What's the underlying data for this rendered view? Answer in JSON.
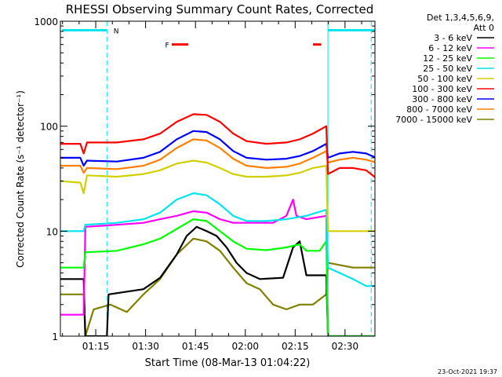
{
  "chart_data": {
    "type": "line",
    "title": "RHESSI Observing Summary Count Rates, Corrected",
    "xlabel": "Start Time (08-Mar-13 01:04:22)",
    "ylabel": "Corrected Count Rate (s⁻¹ detector⁻¹)",
    "y_scale": "log",
    "ylim": [
      1,
      1000
    ],
    "xlim": [
      "01:04:22",
      "02:39:00"
    ],
    "x_ticks": [
      "01:15",
      "01:30",
      "01:45",
      "02:00",
      "02:15",
      "02:30"
    ],
    "y_ticks": [
      "1",
      "10",
      "100",
      "1000"
    ],
    "legend_header": [
      "Det 1,3,4,5,6,9,",
      "Att 0"
    ],
    "legend_position": "right",
    "footer": "23-Oct-2021 19:37",
    "flags": [
      {
        "label": "N",
        "color": "#00e5ee"
      },
      {
        "label": "F",
        "color": "#ff0000"
      }
    ],
    "series": [
      {
        "name": "3 - 6 keV",
        "color": "#000000",
        "points": [
          [
            0,
            3.5
          ],
          [
            7,
            3.5
          ],
          [
            7.5,
            1.0
          ],
          [
            14,
            1.0
          ],
          [
            14.5,
            2.5
          ],
          [
            25,
            2.8
          ],
          [
            30,
            3.6
          ],
          [
            35,
            6
          ],
          [
            38,
            9
          ],
          [
            41,
            11
          ],
          [
            44,
            10
          ],
          [
            47,
            9
          ],
          [
            50,
            7
          ],
          [
            53,
            5
          ],
          [
            56,
            4
          ],
          [
            60,
            3.5
          ],
          [
            67,
            3.6
          ],
          [
            70,
            7
          ],
          [
            72,
            8
          ],
          [
            74,
            3.8
          ],
          [
            80,
            3.8
          ],
          [
            80.5,
            1.0
          ],
          [
            95,
            1.0
          ]
        ]
      },
      {
        "name": "6 - 12 keV",
        "color": "#ff00ff",
        "points": [
          [
            0,
            1.6
          ],
          [
            7,
            1.6
          ],
          [
            7.5,
            11
          ],
          [
            17,
            11.5
          ],
          [
            25,
            12
          ],
          [
            30,
            13
          ],
          [
            35,
            14
          ],
          [
            40,
            15.5
          ],
          [
            44,
            15
          ],
          [
            48,
            13
          ],
          [
            52,
            12
          ],
          [
            56,
            12
          ],
          [
            60,
            12
          ],
          [
            64,
            12
          ],
          [
            68,
            14
          ],
          [
            70,
            20
          ],
          [
            71,
            14
          ],
          [
            74,
            13
          ],
          [
            80,
            14
          ],
          [
            80.5,
            1.0
          ],
          [
            95,
            1.0
          ]
        ]
      },
      {
        "name": "12 - 25 keV",
        "color": "#00ff00",
        "points": [
          [
            0,
            4.5
          ],
          [
            7,
            4.5
          ],
          [
            7.5,
            6.3
          ],
          [
            17,
            6.5
          ],
          [
            25,
            7.5
          ],
          [
            30,
            8.5
          ],
          [
            35,
            10.5
          ],
          [
            40,
            13
          ],
          [
            44,
            12.5
          ],
          [
            48,
            10
          ],
          [
            52,
            8
          ],
          [
            56,
            6.8
          ],
          [
            62,
            6.6
          ],
          [
            68,
            7.0
          ],
          [
            72,
            7.5
          ],
          [
            74,
            6.5
          ],
          [
            78,
            6.5
          ],
          [
            80,
            8.0
          ],
          [
            80.5,
            1.0
          ],
          [
            95,
            1.0
          ]
        ]
      },
      {
        "name": "25 - 50 keV",
        "color": "#00e5ee",
        "points": [
          [
            0,
            10
          ],
          [
            7,
            10
          ],
          [
            7.5,
            11.5
          ],
          [
            17,
            12
          ],
          [
            25,
            13
          ],
          [
            30,
            15
          ],
          [
            35,
            20
          ],
          [
            40,
            23
          ],
          [
            44,
            22
          ],
          [
            48,
            18
          ],
          [
            52,
            14
          ],
          [
            56,
            12.5
          ],
          [
            62,
            12.5
          ],
          [
            68,
            13
          ],
          [
            74,
            14
          ],
          [
            80,
            16
          ],
          [
            80.5,
            4.5
          ],
          [
            84,
            4.0
          ],
          [
            88,
            3.5
          ],
          [
            92,
            3.0
          ],
          [
            95,
            3.0
          ]
        ]
      },
      {
        "name": "50 - 100 keV",
        "color": "#d0d000",
        "points": [
          [
            0,
            30
          ],
          [
            6,
            29
          ],
          [
            7,
            23
          ],
          [
            8,
            34
          ],
          [
            17,
            33
          ],
          [
            25,
            35
          ],
          [
            30,
            38
          ],
          [
            35,
            44
          ],
          [
            40,
            47
          ],
          [
            44,
            45
          ],
          [
            48,
            40
          ],
          [
            52,
            35
          ],
          [
            56,
            33
          ],
          [
            62,
            33
          ],
          [
            68,
            34
          ],
          [
            72,
            36
          ],
          [
            76,
            40
          ],
          [
            80,
            42
          ],
          [
            80.5,
            10
          ],
          [
            88,
            10
          ],
          [
            95,
            10
          ]
        ]
      },
      {
        "name": "100 - 300 keV",
        "color": "#ff0000",
        "points": [
          [
            0,
            68
          ],
          [
            6,
            68
          ],
          [
            7,
            55
          ],
          [
            8,
            70
          ],
          [
            17,
            70
          ],
          [
            25,
            75
          ],
          [
            30,
            85
          ],
          [
            35,
            110
          ],
          [
            40,
            130
          ],
          [
            44,
            128
          ],
          [
            48,
            110
          ],
          [
            52,
            85
          ],
          [
            56,
            72
          ],
          [
            62,
            68
          ],
          [
            68,
            70
          ],
          [
            72,
            75
          ],
          [
            76,
            85
          ],
          [
            80,
            100
          ],
          [
            80.5,
            35
          ],
          [
            84,
            40
          ],
          [
            88,
            40
          ],
          [
            92,
            38
          ],
          [
            95,
            32
          ]
        ]
      },
      {
        "name": "300 - 800 keV",
        "color": "#0000ff",
        "points": [
          [
            0,
            50
          ],
          [
            6,
            50
          ],
          [
            7,
            42
          ],
          [
            8,
            47
          ],
          [
            17,
            46
          ],
          [
            25,
            50
          ],
          [
            30,
            57
          ],
          [
            35,
            75
          ],
          [
            40,
            90
          ],
          [
            44,
            88
          ],
          [
            48,
            75
          ],
          [
            52,
            58
          ],
          [
            56,
            50
          ],
          [
            62,
            48
          ],
          [
            68,
            49
          ],
          [
            72,
            52
          ],
          [
            76,
            58
          ],
          [
            80,
            68
          ],
          [
            80.5,
            50
          ],
          [
            84,
            55
          ],
          [
            88,
            57
          ],
          [
            92,
            55
          ],
          [
            95,
            50
          ]
        ]
      },
      {
        "name": "800 - 7000 keV",
        "color": "#ff8000",
        "points": [
          [
            0,
            42
          ],
          [
            6,
            42
          ],
          [
            7,
            36
          ],
          [
            8,
            40
          ],
          [
            17,
            39
          ],
          [
            25,
            42
          ],
          [
            30,
            48
          ],
          [
            35,
            62
          ],
          [
            40,
            75
          ],
          [
            44,
            73
          ],
          [
            48,
            62
          ],
          [
            52,
            49
          ],
          [
            56,
            42
          ],
          [
            62,
            40
          ],
          [
            68,
            41
          ],
          [
            72,
            44
          ],
          [
            76,
            50
          ],
          [
            80,
            58
          ],
          [
            80.5,
            45
          ],
          [
            84,
            48
          ],
          [
            88,
            50
          ],
          [
            92,
            48
          ],
          [
            95,
            45
          ]
        ]
      },
      {
        "name": "7000 - 15000 keV",
        "color": "#808000",
        "points": [
          [
            0,
            2.5
          ],
          [
            7,
            2.5
          ],
          [
            7.5,
            1.0
          ],
          [
            10,
            1.8
          ],
          [
            15,
            2.0
          ],
          [
            20,
            1.7
          ],
          [
            25,
            2.5
          ],
          [
            30,
            3.5
          ],
          [
            35,
            6
          ],
          [
            40,
            8.5
          ],
          [
            44,
            8
          ],
          [
            48,
            6.5
          ],
          [
            52,
            4.5
          ],
          [
            56,
            3.2
          ],
          [
            60,
            2.8
          ],
          [
            64,
            2.0
          ],
          [
            68,
            1.8
          ],
          [
            72,
            2.0
          ],
          [
            76,
            2.0
          ],
          [
            80,
            2.5
          ],
          [
            80.5,
            5
          ],
          [
            88,
            4.5
          ],
          [
            95,
            4.5
          ]
        ]
      }
    ]
  }
}
